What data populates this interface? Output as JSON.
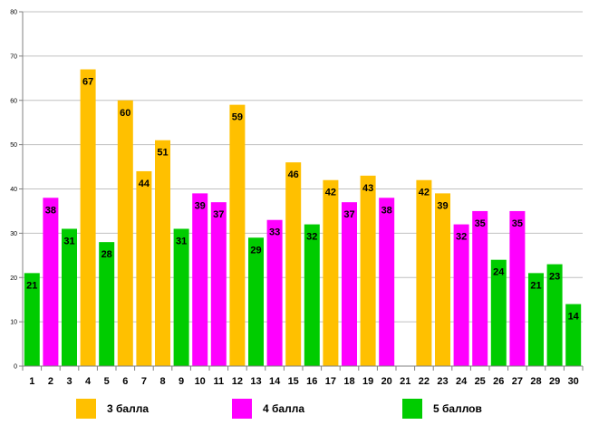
{
  "chart_data": {
    "type": "bar",
    "title": "",
    "xlabel": "",
    "ylabel": "",
    "ylim": [
      0,
      80
    ],
    "yticks": [
      0,
      10,
      20,
      30,
      40,
      50,
      60,
      70,
      80
    ],
    "grid": true,
    "categories": [
      "1",
      "2",
      "3",
      "4",
      "5",
      "6",
      "7",
      "8",
      "9",
      "10",
      "11",
      "12",
      "13",
      "14",
      "15",
      "16",
      "17",
      "18",
      "19",
      "20",
      "21",
      "22",
      "23",
      "24",
      "25",
      "26",
      "27",
      "28",
      "29",
      "30"
    ],
    "values": [
      21,
      38,
      31,
      67,
      28,
      60,
      44,
      51,
      31,
      39,
      37,
      59,
      29,
      33,
      46,
      32,
      42,
      37,
      43,
      38,
      null,
      42,
      39,
      32,
      35,
      24,
      35,
      21,
      23,
      14
    ],
    "value_labels": [
      "21",
      "38",
      "31",
      "67",
      "28",
      "60",
      "44",
      "51",
      "31",
      "39",
      "37",
      "59",
      "29",
      "33",
      "46",
      "32",
      "42",
      "37",
      "43",
      "38",
      "",
      "42",
      "39",
      "32",
      "35",
      "24",
      "35",
      "21",
      "23",
      "14"
    ],
    "grades": [
      "5",
      "4",
      "5",
      "3",
      "5",
      "3",
      "3",
      "3",
      "5",
      "4",
      "4",
      "3",
      "5",
      "4",
      "3",
      "5",
      "3",
      "4",
      "3",
      "4",
      "",
      "3",
      "3",
      "4",
      "4",
      "5",
      "4",
      "5",
      "5",
      "5"
    ],
    "legend_position": "bottom",
    "legend": [
      {
        "key": "3",
        "label": "3 балла",
        "color": "#FFC000"
      },
      {
        "key": "4",
        "label": "4 балла",
        "color": "#FF00FF"
      },
      {
        "key": "5",
        "label": "5 баллов",
        "color": "#00CC00"
      }
    ]
  }
}
